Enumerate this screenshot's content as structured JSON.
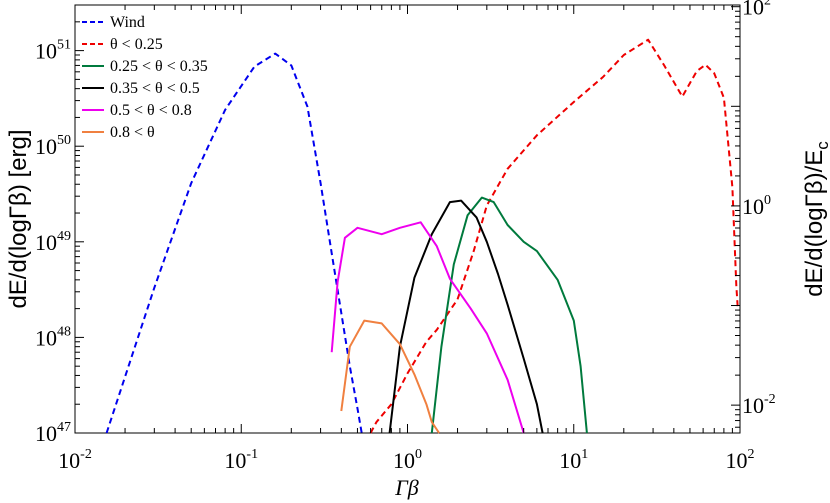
{
  "chart_data": {
    "type": "line",
    "xlabel": "Γβ",
    "ylabel": "dE/d(logΓβ) [erg]",
    "ylabel_right": "dE/d(logΓβ)/E",
    "ylabel_right_sub": "c",
    "xscale": "log",
    "yscale": "log",
    "xlim": [
      0.01,
      100
    ],
    "ylim": [
      1e+47,
      3e+51
    ],
    "y2lim": [
      0.00525,
      104
    ],
    "grid": false,
    "legend_position": "top-left",
    "x_ticks": [
      {
        "base": "10",
        "exp": "-2",
        "value": 0.01
      },
      {
        "base": "10",
        "exp": "-1",
        "value": 0.1
      },
      {
        "base": "10",
        "exp": "0",
        "value": 1
      },
      {
        "base": "10",
        "exp": "1",
        "value": 10
      },
      {
        "base": "10",
        "exp": "2",
        "value": 100
      }
    ],
    "y_ticks": [
      {
        "base": "10",
        "exp": "47",
        "value": 1e+47
      },
      {
        "base": "10",
        "exp": "48",
        "value": 1e+48
      },
      {
        "base": "10",
        "exp": "49",
        "value": 1e+49
      },
      {
        "base": "10",
        "exp": "50",
        "value": 1e+50
      },
      {
        "base": "10",
        "exp": "51",
        "value": 1e+51
      }
    ],
    "y2_ticks": [
      {
        "base": "10",
        "exp": "-2",
        "value": 0.01
      },
      {
        "base": "10",
        "exp": "0",
        "value": 1
      },
      {
        "base": "10",
        "exp": "2",
        "value": 100
      }
    ],
    "series": [
      {
        "name": "Wind",
        "color": "#0000ee",
        "dashed": true,
        "points": [
          [
            0.0155,
            1e+47
          ],
          [
            0.03,
            3.3e+48
          ],
          [
            0.05,
            4.1e+49
          ],
          [
            0.08,
            2.4e+50
          ],
          [
            0.12,
            6.8e+50
          ],
          [
            0.16,
            9.3e+50
          ],
          [
            0.2,
            7e+50
          ],
          [
            0.25,
            2.6e+50
          ],
          [
            0.3,
            4.1e+49
          ],
          [
            0.35,
            7.6e+48
          ],
          [
            0.4,
            1.8e+48
          ],
          [
            0.45,
            5e+47
          ],
          [
            0.5,
            1.8e+47
          ],
          [
            0.53,
            1e+47
          ]
        ]
      },
      {
        "name": "θ < 0.25",
        "color": "#ee0000",
        "dashed": true,
        "points": [
          [
            0.6,
            1e+47
          ],
          [
            0.65,
            1.3e+47
          ],
          [
            0.8,
            2e+47
          ],
          [
            1,
            4.2e+47
          ],
          [
            1.3,
            9e+47
          ],
          [
            1.5,
            1.2e+48
          ],
          [
            2,
            2.5e+48
          ],
          [
            2.5,
            8e+48
          ],
          [
            3,
            2.4e+49
          ],
          [
            4,
            5.8e+49
          ],
          [
            6,
            1.3e+50
          ],
          [
            10,
            2.9e+50
          ],
          [
            15,
            5.3e+50
          ],
          [
            20,
            9e+50
          ],
          [
            28,
            1.3e+51
          ],
          [
            35,
            7e+50
          ],
          [
            45,
            3.3e+50
          ],
          [
            55,
            6.1e+50
          ],
          [
            62,
            7.1e+50
          ],
          [
            70,
            5.8e+50
          ],
          [
            80,
            3.2e+50
          ],
          [
            90,
            3.7e+49
          ],
          [
            95,
            3.5e+48
          ],
          [
            97,
            2e+48
          ]
        ]
      },
      {
        "name": "0.25 < θ < 0.35",
        "color": "#007a3d",
        "dashed": false,
        "points": [
          [
            1.4,
            1e+47
          ],
          [
            1.6,
            8e+47
          ],
          [
            1.9,
            5.8e+48
          ],
          [
            2.3,
            1.9e+49
          ],
          [
            2.8,
            2.9e+49
          ],
          [
            3.3,
            2.6e+49
          ],
          [
            4,
            1.5e+49
          ],
          [
            5,
            1e+49
          ],
          [
            6,
            8e+48
          ],
          [
            8,
            4e+48
          ],
          [
            10,
            1.5e+48
          ],
          [
            11,
            5e+47
          ],
          [
            12,
            1e+47
          ]
        ]
      },
      {
        "name": "0.35 < θ < 0.5",
        "color": "#000000",
        "dashed": false,
        "points": [
          [
            0.78,
            1e+47
          ],
          [
            0.9,
            8e+47
          ],
          [
            1.1,
            4.2e+48
          ],
          [
            1.4,
            1.2e+49
          ],
          [
            1.8,
            2.6e+49
          ],
          [
            2.1,
            2.7e+49
          ],
          [
            2.6,
            1.8e+49
          ],
          [
            3,
            1e+49
          ],
          [
            3.5,
            4.6e+48
          ],
          [
            4,
            2.2e+48
          ],
          [
            5,
            6e+47
          ],
          [
            6,
            2e+47
          ],
          [
            6.5,
            1e+47
          ]
        ]
      },
      {
        "name": "0.5 < θ < 0.8",
        "color": "#ee00ee",
        "dashed": false,
        "points": [
          [
            0.35,
            7e+47
          ],
          [
            0.38,
            3.8e+48
          ],
          [
            0.42,
            1.1e+49
          ],
          [
            0.5,
            1.4e+49
          ],
          [
            0.7,
            1.2e+49
          ],
          [
            0.9,
            1.4e+49
          ],
          [
            1.2,
            1.6e+49
          ],
          [
            1.5,
            9e+48
          ],
          [
            1.8,
            4.1e+48
          ],
          [
            2.4,
            2e+48
          ],
          [
            3,
            1.1e+48
          ],
          [
            4,
            3.6e+47
          ],
          [
            5,
            1e+47
          ]
        ]
      },
      {
        "name": "0.8 < θ",
        "color": "#f08040",
        "dashed": false,
        "points": [
          [
            0.4,
            1.7e+47
          ],
          [
            0.45,
            8e+47
          ],
          [
            0.55,
            1.5e+48
          ],
          [
            0.7,
            1.4e+48
          ],
          [
            0.9,
            8.5e+47
          ],
          [
            1.1,
            4.1e+47
          ],
          [
            1.3,
            2e+47
          ],
          [
            1.4,
            1.3e+47
          ],
          [
            1.55,
            1e+47
          ]
        ]
      }
    ]
  }
}
